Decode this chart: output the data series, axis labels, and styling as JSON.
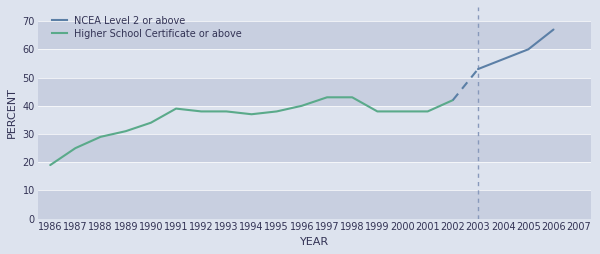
{
  "hsc_years": [
    1986,
    1987,
    1988,
    1989,
    1990,
    1991,
    1992,
    1993,
    1994,
    1995,
    1996,
    1997,
    1998,
    1999,
    2000,
    2001,
    2002
  ],
  "hsc_values": [
    19,
    25,
    29,
    31,
    34,
    39,
    38,
    38,
    37,
    38,
    40,
    43,
    43,
    38,
    38,
    38,
    42
  ],
  "ncea_years": [
    2003,
    2005,
    2006
  ],
  "ncea_values": [
    53,
    60,
    67
  ],
  "ncea_dashed_years": [
    2002,
    2003
  ],
  "ncea_dashed_values": [
    42,
    53
  ],
  "vline_x": 2003,
  "ylim": [
    0,
    75
  ],
  "yticks": [
    0,
    10,
    20,
    30,
    40,
    50,
    60,
    70
  ],
  "xlim": [
    1985.5,
    2007.5
  ],
  "xticks": [
    1986,
    1987,
    1988,
    1989,
    1990,
    1991,
    1992,
    1993,
    1994,
    1995,
    1996,
    1997,
    1998,
    1999,
    2000,
    2001,
    2002,
    2003,
    2004,
    2005,
    2006,
    2007
  ],
  "xlabel": "YEAR",
  "ylabel": "PERCENT",
  "hsc_color": "#5aaa8a",
  "ncea_color": "#5b7fa6",
  "vline_color": "#8899bb",
  "bg_color": "#dde3ee",
  "stripe_color": "#c8cfe0",
  "legend_ncea_label": "NCEA Level 2 or above",
  "legend_hsc_label": "Higher School Certificate or above",
  "title_fontsize": 9,
  "tick_fontsize": 7,
  "label_fontsize": 8
}
